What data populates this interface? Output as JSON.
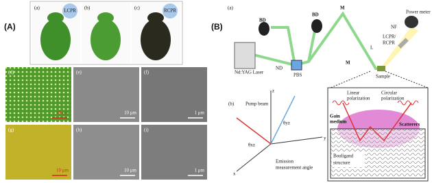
{
  "panel_a": {
    "label": "(A)",
    "photos": [
      {
        "label": "(a)",
        "badge": "LCPR"
      },
      {
        "label": "(b)"
      },
      {
        "label": "(c)",
        "badge": "RCPR"
      }
    ],
    "micrographs": [
      {
        "label": "(d)",
        "scale": "10 μm"
      },
      {
        "label": "(e)",
        "scale": "10 μm"
      },
      {
        "label": "(f)",
        "scale": "1 μm"
      },
      {
        "label": "(g)",
        "scale": "10 μm"
      },
      {
        "label": "(h)",
        "scale": "10 μm"
      },
      {
        "label": "(i)",
        "scale": "1 μm"
      }
    ]
  },
  "panel_b": {
    "label": "(B)",
    "setup": {
      "label": "(a)",
      "laser": "Nd:YAG Laser",
      "beam_dumps": [
        "BD",
        "BD"
      ],
      "mirrors": [
        "M",
        "M"
      ],
      "nd_filter": "ND",
      "splitter": "PBS",
      "lens": "L",
      "polarizer": [
        "LCPR/",
        "RCPR"
      ],
      "notch_filter": "NF",
      "power_meter": "Power meter",
      "sample": "Sample"
    },
    "geometry": {
      "label": "(b)",
      "pump": "Pump beam",
      "theta_yz": "θyz",
      "theta_xz": "θxz",
      "axes": [
        "z",
        "y",
        "x"
      ],
      "emission": [
        "Emission",
        "measurement angle"
      ]
    },
    "mechanism": {
      "linear": [
        "Linear",
        "polarization"
      ],
      "circular": [
        "Circular",
        "polarization"
      ],
      "gain": [
        "Gain",
        "medium"
      ],
      "scatterers": "Scatterers",
      "bouligand": [
        "Bouligand",
        "structure"
      ]
    }
  }
}
